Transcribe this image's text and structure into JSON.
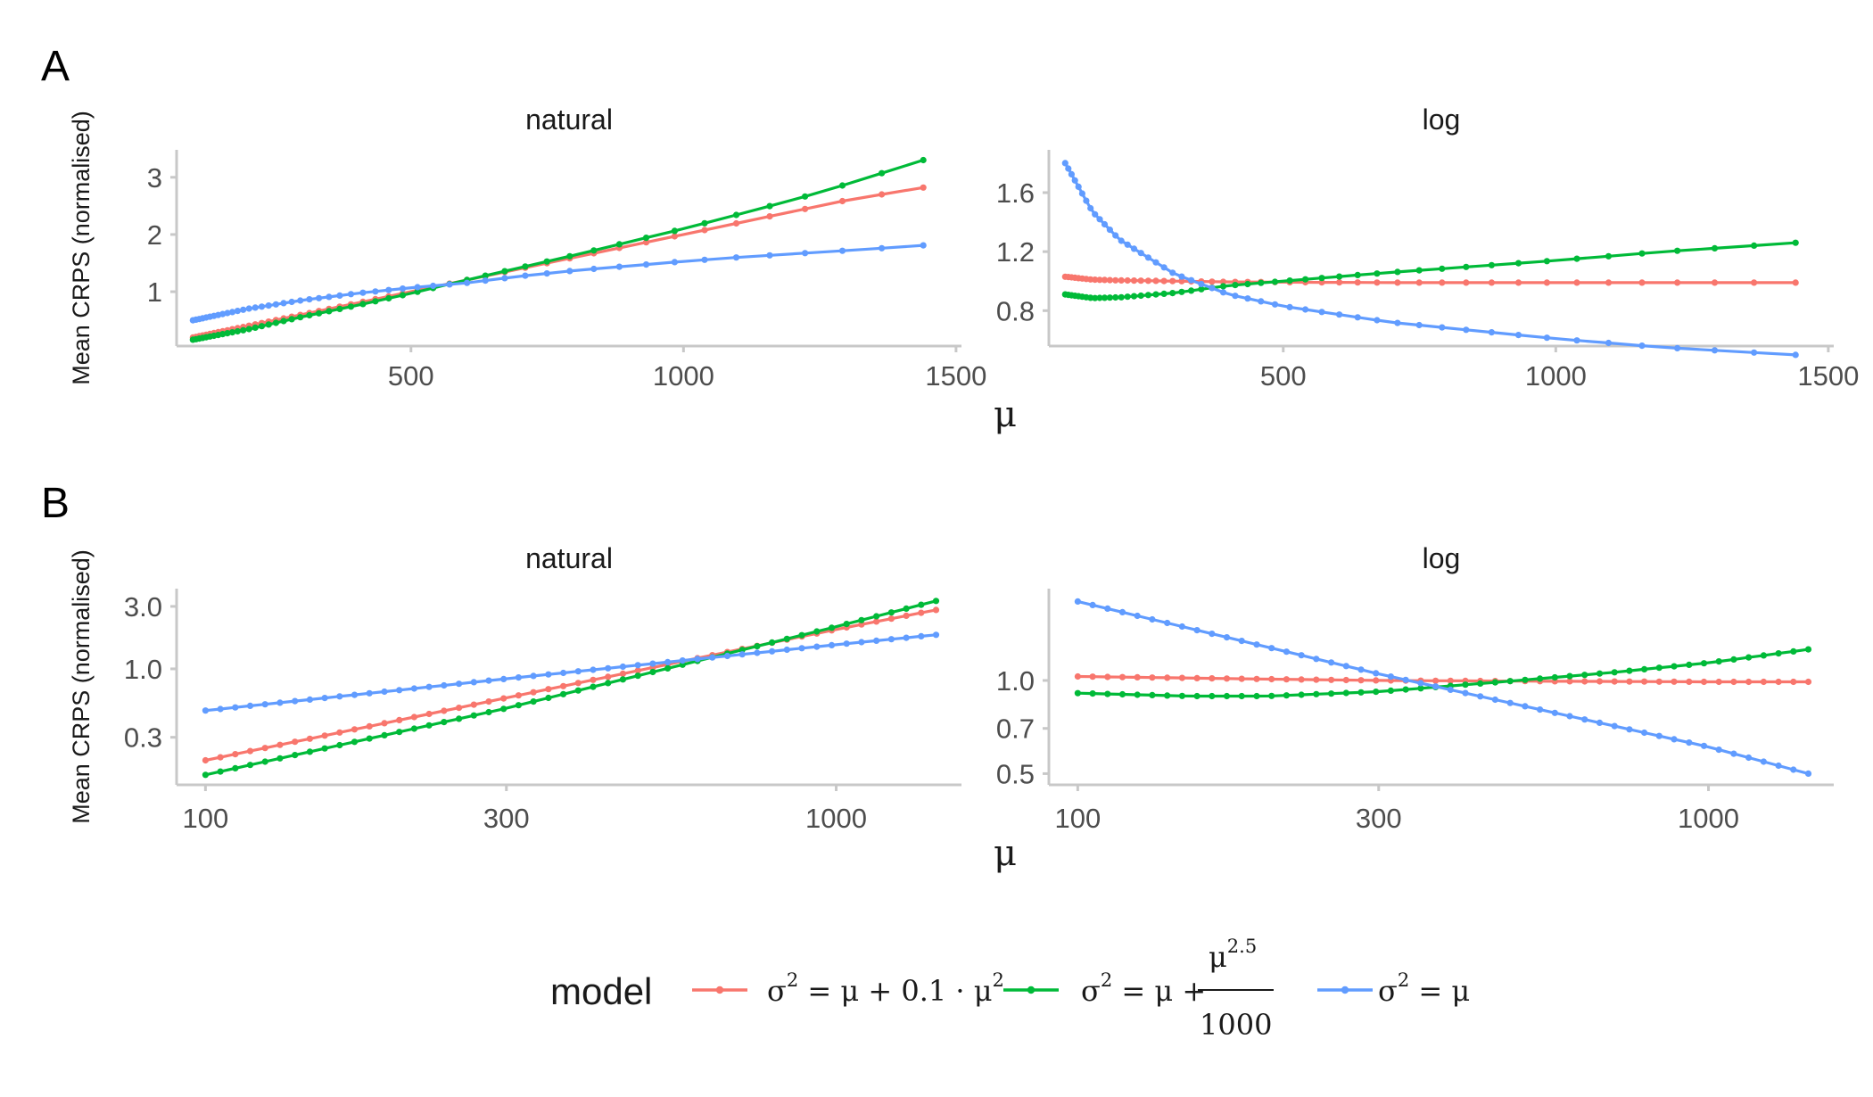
{
  "legend": {
    "title": "model",
    "entries": [
      {
        "key": "quad",
        "text": "σ² = μ + 0.1 · μ²",
        "color": "#F8766D"
      },
      {
        "key": "pow",
        "text": "σ² = μ + μ^2.5 / 1000",
        "color": "#00BA38"
      },
      {
        "key": "pois",
        "text": "σ² = μ",
        "color": "#619CFF"
      }
    ]
  },
  "legend_parts": {
    "quad": {
      "sigma": "σ",
      "sq": "2",
      "eq": " = μ + 0.1 · μ",
      "sq2": "2"
    },
    "pow": {
      "sigma": "σ",
      "sq": "2",
      "eq": " = μ +",
      "num": "μ",
      "exp": "2.5",
      "den": "1000"
    },
    "pois": {
      "sigma": "σ",
      "sq": "2",
      "eq": " = μ"
    }
  },
  "chart_data": [
    {
      "type": "line",
      "tag": "A",
      "facet": "natural",
      "xlabel": "μ",
      "ylabel": "Mean CRPS (normalised)",
      "xscale": "linear",
      "yscale": "linear",
      "xlim": [
        70,
        1510
      ],
      "ylim": [
        0.05,
        3.48
      ],
      "xticks": [
        500,
        1000,
        1500
      ],
      "yticks": [
        1,
        2,
        3
      ],
      "series": [
        {
          "name": "σ² = μ + 0.1 · μ²",
          "color": "#F8766D",
          "x": [
            100,
            200,
            300,
            400,
            500,
            600,
            700,
            800,
            900,
            1000,
            1100,
            1200,
            1300,
            1440
          ],
          "y": [
            0.2,
            0.4,
            0.6,
            0.8,
            1.0,
            1.2,
            1.4,
            1.6,
            1.8,
            2.0,
            2.2,
            2.4,
            2.6,
            2.82
          ]
        },
        {
          "name": "σ² = μ + μ^2.5 / 1000",
          "color": "#00BA38",
          "x": [
            100,
            200,
            300,
            400,
            500,
            600,
            700,
            800,
            900,
            1000,
            1100,
            1200,
            1300,
            1440
          ],
          "y": [
            0.16,
            0.34,
            0.56,
            0.76,
            0.97,
            1.2,
            1.42,
            1.64,
            1.87,
            2.1,
            2.35,
            2.6,
            2.88,
            3.3
          ]
        },
        {
          "name": "σ² = μ",
          "color": "#619CFF",
          "x": [
            100,
            200,
            300,
            400,
            500,
            600,
            700,
            800,
            900,
            1000,
            1100,
            1200,
            1300,
            1440
          ],
          "y": [
            0.5,
            0.7,
            0.85,
            0.97,
            1.07,
            1.15,
            1.27,
            1.37,
            1.45,
            1.53,
            1.6,
            1.66,
            1.72,
            1.81
          ]
        }
      ]
    },
    {
      "type": "line",
      "tag": "",
      "facet": "log",
      "xlabel": "μ",
      "ylabel": "",
      "xscale": "linear",
      "yscale": "linear",
      "xlim": [
        70,
        1510
      ],
      "ylim": [
        0.56,
        1.89
      ],
      "xticks": [
        500,
        1000,
        1500
      ],
      "yticks": [
        0.8,
        1.2,
        1.6
      ],
      "series": [
        {
          "name": "σ² = μ + 0.1 · μ²",
          "color": "#F8766D",
          "x": [
            100,
            150,
            200,
            300,
            400,
            500,
            700,
            1000,
            1440
          ],
          "y": [
            1.03,
            1.01,
            1.005,
            1.0,
            0.995,
            0.993,
            0.99,
            0.99,
            0.99
          ]
        },
        {
          "name": "σ² = μ + μ^2.5 / 1000",
          "color": "#00BA38",
          "x": [
            100,
            150,
            200,
            300,
            400,
            500,
            700,
            1000,
            1200,
            1440
          ],
          "y": [
            0.91,
            0.885,
            0.89,
            0.92,
            0.97,
            1.0,
            1.06,
            1.14,
            1.2,
            1.26
          ]
        },
        {
          "name": "σ² = μ",
          "color": "#619CFF",
          "x": [
            100,
            150,
            200,
            300,
            400,
            500,
            700,
            1000,
            1200,
            1440
          ],
          "y": [
            1.8,
            1.47,
            1.28,
            1.05,
            0.91,
            0.83,
            0.72,
            0.61,
            0.55,
            0.5
          ]
        }
      ]
    },
    {
      "type": "line",
      "tag": "B",
      "facet": "natural",
      "xlabel": "μ",
      "ylabel": "Mean CRPS (normalised)",
      "xscale": "log",
      "yscale": "log",
      "xlim": [
        90,
        1580
      ],
      "ylim": [
        0.13,
        4.1
      ],
      "xticks": [
        100,
        300,
        1000
      ],
      "yticks": [
        0.3,
        1.0,
        3.0
      ],
      "ytick_labels": [
        "0.3",
        "1.0",
        "3.0"
      ],
      "series": [
        {
          "name": "σ² = μ + 0.1 · μ²",
          "color": "#F8766D",
          "x": [
            100,
            300,
            1000,
            1440
          ],
          "y": [
            0.2,
            0.6,
            2.0,
            2.82
          ]
        },
        {
          "name": "σ² = μ + μ^2.5 / 1000",
          "color": "#00BA38",
          "x": [
            100,
            300,
            1000,
            1440
          ],
          "y": [
            0.155,
            0.5,
            2.1,
            3.3
          ]
        },
        {
          "name": "σ² = μ",
          "color": "#619CFF",
          "x": [
            100,
            300,
            1000,
            1440
          ],
          "y": [
            0.48,
            0.84,
            1.53,
            1.82
          ]
        }
      ]
    },
    {
      "type": "line",
      "tag": "",
      "facet": "log",
      "xlabel": "μ",
      "ylabel": "",
      "xscale": "log",
      "yscale": "log",
      "xlim": [
        90,
        1580
      ],
      "ylim": [
        0.46,
        1.98
      ],
      "xticks": [
        100,
        300,
        1000
      ],
      "yticks": [
        0.5,
        0.7,
        1.0
      ],
      "ytick_labels": [
        "0.5",
        "0.7",
        "1.0"
      ],
      "series": [
        {
          "name": "σ² = μ + 0.1 · μ²",
          "color": "#F8766D",
          "x": [
            100,
            200,
            300,
            500,
            1000,
            1440
          ],
          "y": [
            1.03,
            1.01,
            1.0,
            0.995,
            0.99,
            0.99
          ]
        },
        {
          "name": "σ² = μ + μ^2.5 / 1000",
          "color": "#00BA38",
          "x": [
            100,
            150,
            200,
            300,
            500,
            700,
            1000,
            1440
          ],
          "y": [
            0.91,
            0.89,
            0.89,
            0.92,
            1.0,
            1.06,
            1.14,
            1.26
          ]
        },
        {
          "name": "σ² = μ",
          "color": "#619CFF",
          "x": [
            100,
            300,
            1000,
            1440
          ],
          "y": [
            1.8,
            1.05,
            0.61,
            0.5
          ]
        }
      ]
    }
  ]
}
